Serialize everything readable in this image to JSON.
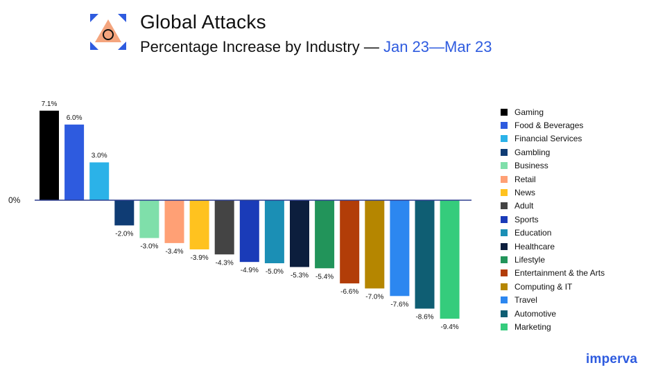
{
  "header": {
    "title": "Global Attacks",
    "subtitle_prefix": "Percentage Increase by Industry — ",
    "subtitle_date": "Jan 23—Mar 23",
    "logo_icon": "triangle-circle-icon"
  },
  "brand": "imperva",
  "colors": {
    "accent": "#2e5bdf",
    "icon_fill": "#f4a57e",
    "axis": "#2e3f8f"
  },
  "chart_data": {
    "type": "bar",
    "title": "Global Attacks",
    "subtitle": "Percentage Increase by Industry — Jan 23—Mar 23",
    "xlabel": "",
    "ylabel": "",
    "zero_label": "0%",
    "categories": [
      "Gaming",
      "Food & Beverages",
      "Financial Services",
      "Gambling",
      "Business",
      "Retail",
      "News",
      "Adult",
      "Sports",
      "Education",
      "Healthcare",
      "Lifestyle",
      "Entertainment & the Arts",
      "Computing & IT",
      "Travel",
      "Automotive",
      "Marketing"
    ],
    "values": [
      7.1,
      6.0,
      3.0,
      -2.0,
      -3.0,
      -3.4,
      -3.9,
      -4.3,
      -4.9,
      -5.0,
      -5.3,
      -5.4,
      -6.6,
      -7.0,
      -7.6,
      -8.6,
      -9.4
    ],
    "labels": [
      "7.1%",
      "6.0%",
      "3.0%",
      "-2.0%",
      "-3.0%",
      "-3.4%",
      "-3.9%",
      "-4.3%",
      "-4.9%",
      "-5.0%",
      "-5.3%",
      "-5.4%",
      "-6.6%",
      "-7.0%",
      "-7.6%",
      "-8.6%",
      "-9.4%"
    ],
    "colors": [
      "#000000",
      "#2e5bdf",
      "#2bb2e8",
      "#0f3c74",
      "#7fdfaa",
      "#ffa075",
      "#ffc21f",
      "#444444",
      "#1a3bb8",
      "#1b8fb5",
      "#0c1e3d",
      "#22945a",
      "#b23d08",
      "#b58600",
      "#2c87f0",
      "#0f5e73",
      "#35cc7c"
    ],
    "ylim": [
      -9.4,
      7.1
    ],
    "grid": false,
    "legend_position": "right"
  }
}
